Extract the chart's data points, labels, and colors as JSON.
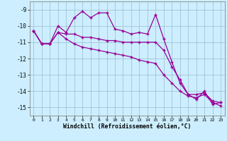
{
  "x": [
    0,
    1,
    2,
    3,
    4,
    5,
    6,
    7,
    8,
    9,
    10,
    11,
    12,
    13,
    14,
    15,
    16,
    17,
    18,
    19,
    20,
    21,
    22,
    23
  ],
  "line1": [
    -10.3,
    -11.1,
    -11.1,
    -10.0,
    -10.4,
    -9.5,
    -9.1,
    -9.5,
    -9.2,
    -9.2,
    -10.2,
    -10.3,
    -10.5,
    -10.4,
    -10.5,
    -9.3,
    -10.8,
    -12.2,
    -13.5,
    -14.2,
    -14.5,
    -14.0,
    -14.8,
    -14.7
  ],
  "line2": [
    -10.3,
    -11.1,
    -11.1,
    -10.4,
    -10.5,
    -10.5,
    -10.7,
    -10.7,
    -10.8,
    -10.9,
    -10.9,
    -11.0,
    -11.0,
    -11.0,
    -11.0,
    -11.0,
    -11.5,
    -12.5,
    -13.3,
    -14.2,
    -14.2,
    -14.1,
    -14.6,
    -14.7
  ],
  "line3": [
    -10.3,
    -11.1,
    -11.1,
    -10.4,
    -10.8,
    -11.1,
    -11.3,
    -11.4,
    -11.5,
    -11.6,
    -11.7,
    -11.8,
    -11.9,
    -12.1,
    -12.2,
    -12.3,
    -13.0,
    -13.5,
    -14.0,
    -14.3,
    -14.4,
    -14.2,
    -14.7,
    -14.9
  ],
  "bg_color": "#cceeff",
  "line_color": "#990099",
  "grid_color": "#99bbcc",
  "xlabel": "Windchill (Refroidissement éolien,°C)",
  "ylim": [
    -15.5,
    -8.5
  ],
  "xlim": [
    -0.5,
    23.5
  ],
  "yticks": [
    -9,
    -10,
    -11,
    -12,
    -13,
    -14,
    -15
  ],
  "xticks": [
    0,
    1,
    2,
    3,
    4,
    5,
    6,
    7,
    8,
    9,
    10,
    11,
    12,
    13,
    14,
    15,
    16,
    17,
    18,
    19,
    20,
    21,
    22,
    23
  ]
}
